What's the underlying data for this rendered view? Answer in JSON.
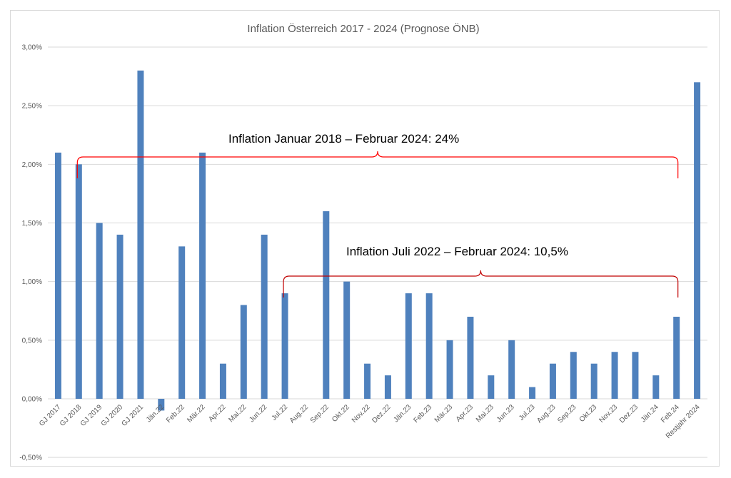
{
  "chart_data": {
    "type": "bar",
    "title": "Inflation Österreich 2017 - 2024 (Prognose ÖNB)",
    "xlabel": "",
    "ylabel": "",
    "ylim": [
      -0.5,
      3.0
    ],
    "yticks": [
      "-0,50%",
      "0,00%",
      "0,50%",
      "1,00%",
      "1,50%",
      "2,00%",
      "2,50%",
      "3,00%"
    ],
    "grid": true,
    "bar_color": "#4f81bd",
    "categories": [
      "GJ 2017",
      "GJ 2018",
      "GJ 2019",
      "GJ 2020",
      "GJ 2021",
      "Jän.22",
      "Feb.22",
      "Mär.22",
      "Apr.22",
      "Mai.22",
      "Jun.22",
      "Jul.22",
      "Aug.22",
      "Sep.22",
      "Okt.22",
      "Nov.22",
      "Dez.22",
      "Jän.23",
      "Feb.23",
      "Mär.23",
      "Apr.23",
      "Mai.23",
      "Jun.23",
      "Jul.23",
      "Aug.23",
      "Sep.23",
      "Okt.23",
      "Nov.23",
      "Dez.23",
      "Jän.24",
      "Feb.24",
      "Restjahr 2024"
    ],
    "values": [
      2.1,
      2.0,
      1.5,
      1.4,
      2.8,
      -0.1,
      1.3,
      2.1,
      0.3,
      0.8,
      1.4,
      0.9,
      0.0,
      1.6,
      1.0,
      0.3,
      0.2,
      0.9,
      0.9,
      0.5,
      0.7,
      0.2,
      0.5,
      0.1,
      0.3,
      0.4,
      0.3,
      0.4,
      0.4,
      0.2,
      0.7,
      2.7
    ],
    "annotations": [
      {
        "text": "Inflation Januar 2018 – Februar 2024: 24%",
        "from": "GJ 2018",
        "to": "Feb.24",
        "color": "#ff0000"
      },
      {
        "text": "Inflation Juli 2022 – Februar 2024: 10,5%",
        "from": "Jul.22",
        "to": "Feb.24",
        "color": "#c00000"
      }
    ]
  }
}
